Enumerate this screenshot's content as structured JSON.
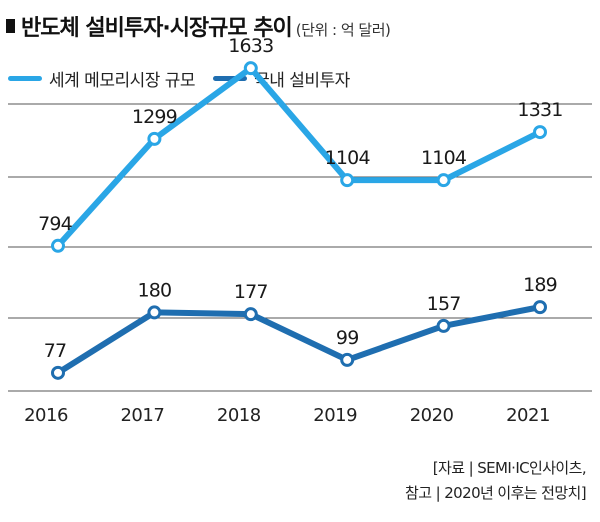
{
  "title": {
    "main": "반도체 설비투자·시장규모 추이",
    "unit": "(단위 : 억 달러)"
  },
  "colors": {
    "world": "#2aa6e6",
    "domestic": "#1f6eb0",
    "grid": "#555555",
    "point_fill": "#ffffff"
  },
  "source": {
    "line1": "[자료 | SEMI·IC인사이츠,",
    "line2": "참고 | 2020년 이후는 전망치]"
  },
  "chart_data": {
    "type": "line",
    "title": "반도체 설비투자·시장규모 추이",
    "unit": "억 달러",
    "categories": [
      "2016",
      "2017",
      "2018",
      "2019",
      "2020",
      "2021"
    ],
    "series": [
      {
        "name": "세계 메모리시장 규모",
        "values": [
          794,
          1299,
          1633,
          1104,
          1104,
          1331
        ],
        "ylim": [
          500,
          1700
        ]
      },
      {
        "name": "국내 설비투자",
        "values": [
          77,
          180,
          177,
          99,
          157,
          189
        ],
        "ylim": [
          0,
          300
        ]
      }
    ],
    "labels": [
      [
        "794",
        "1299",
        "1633",
        "1104",
        "1104",
        "1331"
      ],
      [
        "77",
        "180",
        "177",
        "99",
        "157",
        "189"
      ]
    ],
    "grid": true,
    "legend": "top-left"
  }
}
